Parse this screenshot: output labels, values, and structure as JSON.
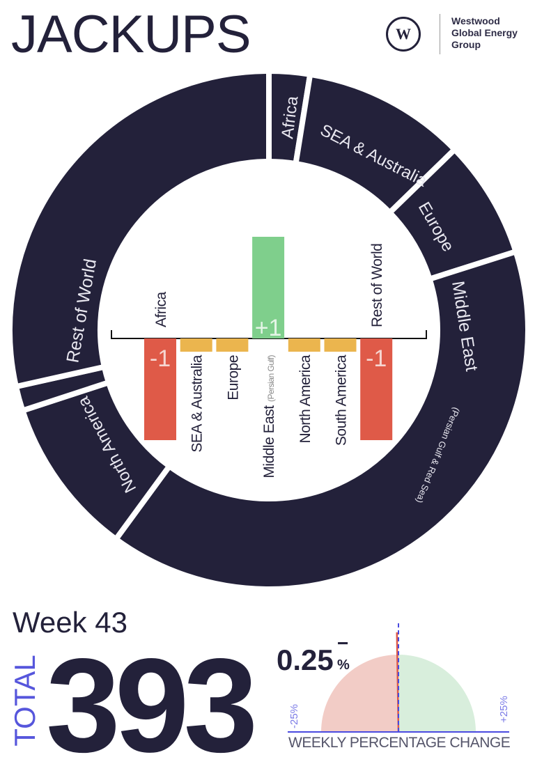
{
  "title": "JACKUPS",
  "logo": {
    "mark": "W",
    "line1": "Westwood",
    "line2": "Global Energy",
    "line3": "Group"
  },
  "colors": {
    "ring": "#23213a",
    "negative": "#df5a48",
    "positive": "#7fcf8c",
    "neutral": "#ebb54e",
    "accent": "#5656dc",
    "gauge_negative": "#f2ccc6",
    "gauge_positive": "#d8eedc"
  },
  "chart_data": [
    {
      "type": "pie",
      "variant": "donut",
      "total": 393,
      "segments": [
        {
          "label": "Africa",
          "value": 10
        },
        {
          "label": "SEA & Australia",
          "value": 40
        },
        {
          "label": "Europe",
          "value": 29
        },
        {
          "label": "Middle East",
          "sublabel": "(Persian Gulf & Red Sea)",
          "value": 157
        },
        {
          "label": "North America",
          "value": 39
        },
        {
          "label": "",
          "value": 6
        },
        {
          "label": "Rest of World",
          "value": 112
        }
      ]
    },
    {
      "type": "bar",
      "categories": [
        "Africa",
        "SEA & Australia",
        "Europe",
        "Middle East",
        "North America",
        "South America",
        "Rest of World"
      ],
      "category_sublabels": {
        "Middle East": "(Persian Gulf)"
      },
      "values": [
        -1,
        0,
        0,
        1,
        0,
        0,
        -1
      ],
      "data_labels": [
        "-1",
        "",
        "",
        "+1",
        "",
        "",
        "-1"
      ],
      "ylim": [
        -1,
        1
      ]
    },
    {
      "type": "gauge",
      "title": "WEEKLY PERCENTAGE CHANGE",
      "value": -0.25,
      "range": [
        -25,
        25
      ],
      "min_label": "-25%",
      "max_label": "+25%"
    }
  ],
  "week": "Week 43",
  "total": {
    "label": "TOTAL",
    "value": "393"
  },
  "change": {
    "value": "0.25",
    "sign": "−",
    "unit": "%"
  }
}
